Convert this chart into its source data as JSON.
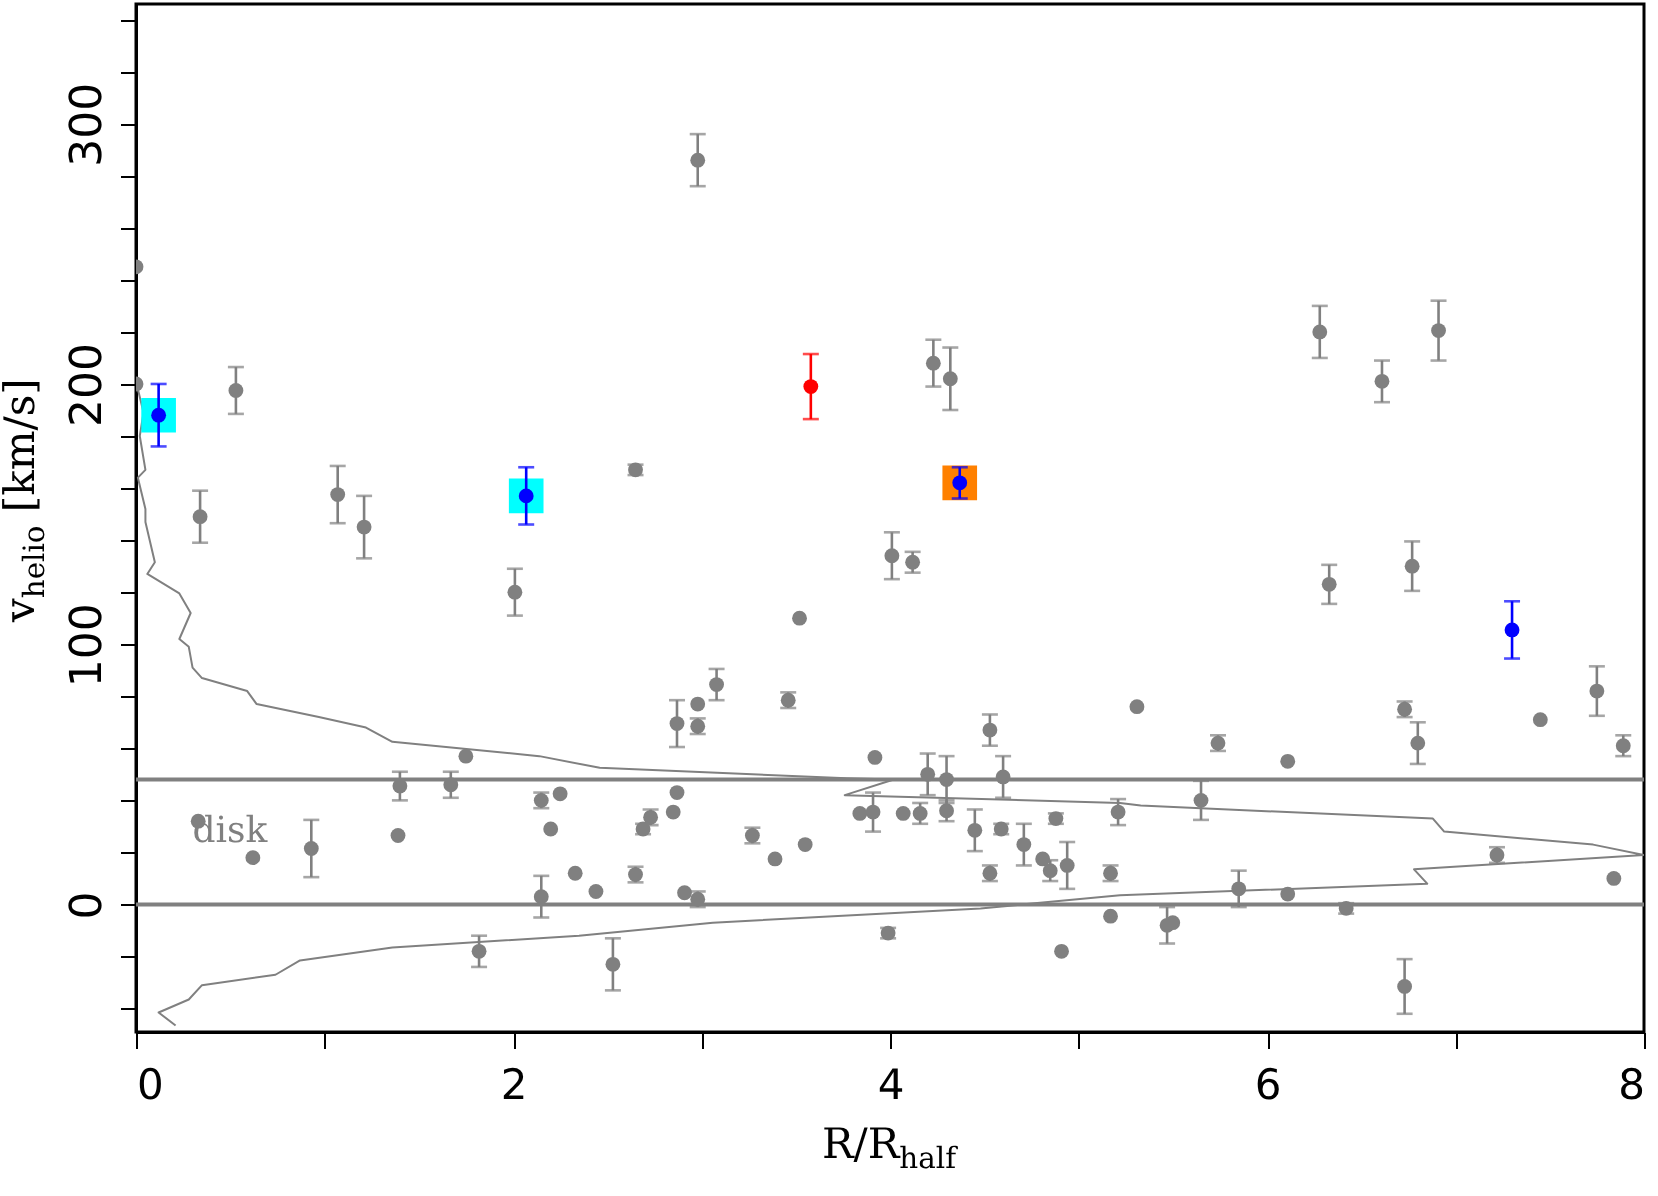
{
  "chart_data": {
    "type": "scatter",
    "xlabel": "R/R$_{half}$",
    "ylabel": "v$_{helio}$ [km/s]",
    "xlim": [
      0,
      8
    ],
    "ylim": [
      -49,
      346
    ],
    "xticks": [
      0,
      {
        "value": 1,
        "label": null
      },
      2,
      {
        "value": 3,
        "label": null
      },
      4,
      {
        "value": 5,
        "label": null
      },
      6,
      {
        "value": 7,
        "label": null
      },
      8
    ],
    "yticks": [
      {
        "value": -40,
        "label": null
      },
      {
        "value": -20,
        "label": null
      },
      0,
      {
        "value": 20,
        "label": null
      },
      {
        "value": 40,
        "label": null
      },
      {
        "value": 60,
        "label": null
      },
      {
        "value": 80,
        "label": null
      },
      100,
      {
        "value": 120,
        "label": null
      },
      {
        "value": 140,
        "label": null
      },
      {
        "value": 160,
        "label": null
      },
      {
        "value": 180,
        "label": null
      },
      200,
      {
        "value": 220,
        "label": null
      },
      {
        "value": 240,
        "label": null
      },
      {
        "value": 260,
        "label": null
      },
      {
        "value": 280,
        "label": null
      },
      300,
      {
        "value": 320,
        "label": null
      },
      {
        "value": 340,
        "label": null
      }
    ],
    "ref_lines": [
      {
        "axis": "y",
        "value": 0,
        "color": "#808080"
      },
      {
        "axis": "y",
        "value": 48,
        "color": "#808080"
      }
    ],
    "annotations": [
      {
        "text": "disk",
        "x": 0.3,
        "y": 28
      }
    ],
    "series": [
      {
        "type": "line",
        "color": "#808080",
        "marker": "none",
        "line_style": "solid",
        "x": [
          0,
          0.04,
          0.02,
          0.05,
          0.01,
          0.05,
          0.05,
          0.1,
          0.06,
          0.23,
          0.29,
          0.23,
          0.28,
          0.3,
          0.35,
          0.59,
          0.64,
          0.97,
          1.22,
          1.36,
          2.14,
          2.46,
          3.77,
          4.02,
          3.76,
          5.22,
          5.33,
          6.88,
          6.94,
          7.73,
          8,
          6.78,
          6.85,
          5.22,
          4.48,
          3.06,
          2.35,
          1.36,
          0.87,
          0.74,
          0.35,
          0.28,
          0.12,
          0.21
        ],
        "values": [
          201,
          189,
          180,
          167,
          164,
          152,
          147,
          131.5,
          127,
          119.5,
          112,
          102,
          99,
          91,
          87,
          82,
          77,
          72,
          68,
          62.5,
          57,
          52.5,
          48.5,
          48,
          42,
          39,
          38,
          33,
          28,
          23,
          19,
          13.5,
          8,
          3.5,
          -1.5,
          -7,
          -12,
          -16.5,
          -21.5,
          -27,
          -31,
          -36.5,
          -41.5,
          -46.5
        ]
      },
      {
        "type": "scatter",
        "color": "#00ffff",
        "marker": "square",
        "x": [
          0.12,
          2.07
        ],
        "values": [
          188,
          157
        ]
      },
      {
        "type": "scatter",
        "color": "#ff8000",
        "marker": "square",
        "x": [
          4.37
        ],
        "values": [
          162
        ]
      },
      {
        "type": "scatter",
        "color": "#808080",
        "marker": "circle",
        "x": [
          0,
          0,
          0.53,
          0.34,
          1.07,
          1.21,
          2.01,
          2.98,
          2.65,
          4.23,
          4.32,
          4.01,
          4.12,
          6.28,
          6.61,
          6.91,
          6.33,
          6.77,
          5.31,
          5.74,
          6.11,
          6.73,
          6.8,
          7.45,
          7.75,
          7.89,
          5.65,
          7.22,
          7.84,
          5.85,
          6.11,
          6.42,
          5.47,
          5.5,
          6.73,
          3.52,
          2.87,
          2.98,
          2.98,
          3.08,
          3.46,
          3.92,
          4.2,
          4.3,
          4.53,
          4.6,
          2.87,
          2.73,
          2.69,
          2.85,
          3.27,
          3.39,
          3.55,
          3.84,
          3.91,
          4.07,
          4.16,
          4.3,
          4.45,
          4.59,
          4.71,
          4.81,
          4.85,
          4.94,
          4.88,
          5.21,
          5.17,
          5.17,
          4.53,
          4.91,
          3.99,
          2.65,
          2.44,
          2.91,
          2.98,
          2.53,
          0.33,
          0.62,
          0.93,
          1.4,
          1.39,
          1.67,
          1.75,
          2.15,
          2.25,
          2.2,
          2.33,
          2.15,
          1.82
        ],
        "values": [
          200,
          245,
          197.5,
          149,
          157.5,
          145,
          120,
          286,
          167,
          208,
          202,
          134,
          131.5,
          220,
          201,
          220.5,
          123,
          130,
          76,
          62,
          55,
          75,
          62,
          71,
          82,
          61,
          40,
          19,
          10,
          6,
          4,
          -1.5,
          -8,
          -7,
          -31.5,
          110,
          69.5,
          77,
          68.5,
          84.5,
          78.5,
          56.5,
          50,
          48,
          67,
          49,
          43,
          33.5,
          29,
          35.5,
          26.5,
          17.5,
          23,
          35,
          35.5,
          35,
          35,
          36,
          28.5,
          29,
          23,
          17.5,
          13,
          15,
          33,
          35.5,
          12,
          -4.5,
          12,
          -18,
          -11,
          11.5,
          5,
          4.5,
          2,
          -23,
          32,
          18,
          21.5,
          45.5,
          26.5,
          46,
          57,
          40,
          42.5,
          29,
          12,
          3,
          -18
        ],
        "errors": [
          null,
          null,
          9,
          10,
          11,
          12,
          9,
          10,
          2,
          9,
          12,
          9,
          4,
          10,
          8,
          11.5,
          7.5,
          9.5,
          null,
          3,
          null,
          3,
          8,
          null,
          9.5,
          4,
          7.5,
          3,
          null,
          7,
          null,
          2,
          7,
          null,
          10.5,
          null,
          9,
          null,
          3,
          6,
          3,
          null,
          8,
          9,
          6,
          8,
          null,
          3,
          2,
          null,
          3,
          null,
          null,
          null,
          7.5,
          null,
          4,
          4,
          8,
          2,
          8,
          null,
          4,
          9,
          2,
          5,
          3,
          null,
          3,
          null,
          2,
          3,
          null,
          null,
          3,
          10,
          null,
          null,
          11,
          5.5,
          null,
          5,
          null,
          3,
          null,
          null,
          null,
          8,
          6
        ]
      },
      {
        "type": "scatter",
        "color": "#ff0000",
        "marker": "circle",
        "x": [
          3.58
        ],
        "values": [
          199
        ],
        "errors": [
          12.5
        ]
      },
      {
        "type": "scatter",
        "color": "#0000ff",
        "marker": "circle",
        "x": [
          0.12,
          2.07,
          4.37,
          7.3
        ],
        "values": [
          188,
          157,
          162,
          105.5
        ],
        "errors": [
          12,
          11,
          6,
          11
        ]
      }
    ]
  }
}
